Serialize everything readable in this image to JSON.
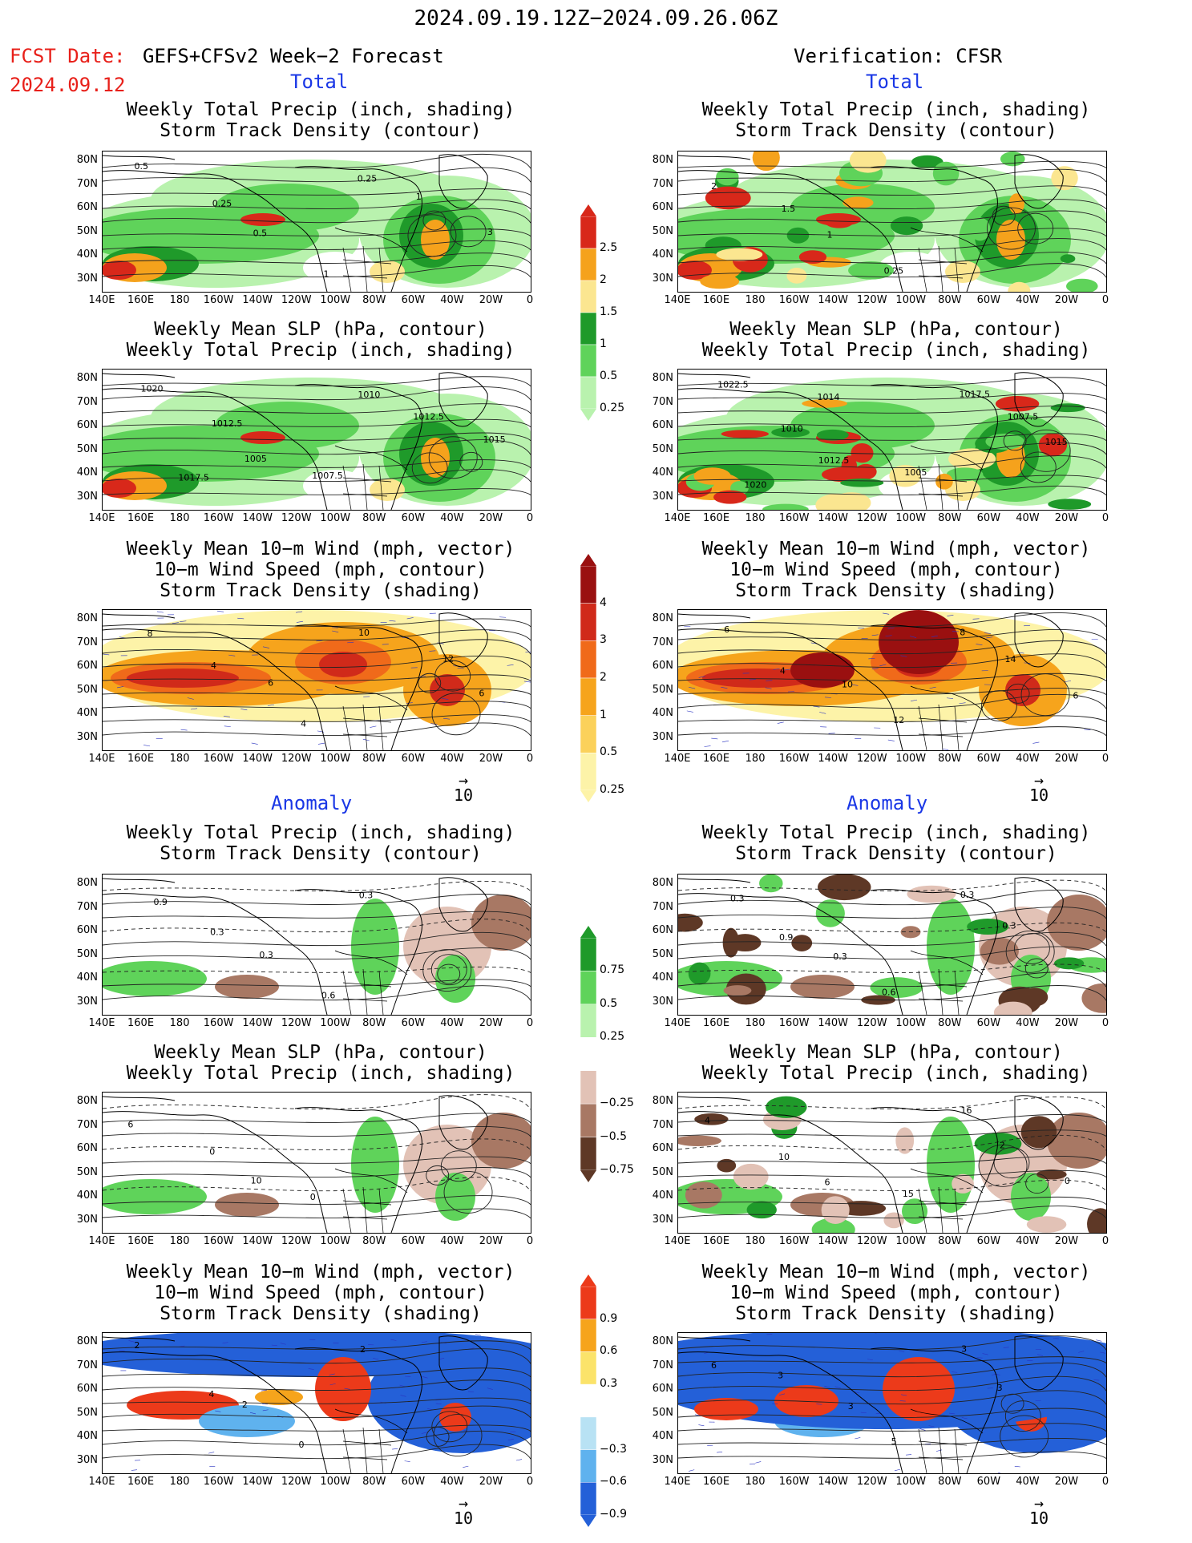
{
  "header": {
    "date_range": "2024.09.19.12Z−2024.09.26.06Z",
    "fcst_date_label": "FCST Date:",
    "fcst_date_value": "2024.09.12",
    "forecast_name": "GEFS+CFSv2 Week−2 Forecast",
    "verification": "Verification: CFSR"
  },
  "sections": {
    "total": "Total",
    "anomaly": "Anomaly"
  },
  "panel_titles": {
    "precip_storm": "Weekly Total Precip (inch, shading)\nStorm Track Density (contour)",
    "slp_precip": "Weekly Mean SLP (hPa, contour)\nWeekly Total Precip (inch, shading)",
    "wind": "Weekly Mean 10−m Wind (mph, vector)\n10−m Wind Speed (mph, contour)\nStorm Track Density (shading)"
  },
  "axes": {
    "lat_labels": [
      "80N",
      "70N",
      "60N",
      "50N",
      "40N",
      "30N"
    ],
    "lon_labels": [
      "140E",
      "160E",
      "180",
      "160W",
      "140W",
      "120W",
      "100W",
      "80W",
      "60W",
      "40W",
      "20W",
      "0"
    ]
  },
  "ref_vector": {
    "arrow": "→",
    "value": "10"
  },
  "colorbars": {
    "precip_total": {
      "labels": [
        "2.5",
        "2",
        "1.5",
        "1",
        "0.5",
        "0.25"
      ],
      "colors": [
        "#d8281a",
        "#f5a21c",
        "#fbe690",
        "#1f9a2a",
        "#5fd35a",
        "#b9f2ae"
      ]
    },
    "storm_total": {
      "labels": [
        "4",
        "3",
        "2",
        "1",
        "0.5",
        "0.25"
      ],
      "colors": [
        "#9a1010",
        "#d02a1a",
        "#f06a1a",
        "#f6a41c",
        "#fbd15a",
        "#fdf3a8"
      ]
    },
    "precip_anom": {
      "labels": [
        "0.75",
        "0.5",
        "0.25",
        "−0.25",
        "−0.5",
        "−0.75"
      ],
      "colors": [
        "#1f9a2a",
        "#5fd35a",
        "#b9f2ae",
        "#ffffff",
        "#e2c2b6",
        "#a87864",
        "#5e3826"
      ]
    },
    "storm_anom": {
      "labels": [
        "0.9",
        "0.6",
        "0.3",
        "−0.3",
        "−0.6",
        "−0.9"
      ],
      "colors": [
        "#ec3a1a",
        "#f6a41c",
        "#fbe36a",
        "#ffffff",
        "#b8e2f4",
        "#5fb2ee",
        "#2460d8"
      ]
    }
  },
  "map_labels": {
    "fc_precip_storm": [
      "0.5",
      "0.25",
      "0.5",
      "1",
      "0.25",
      "1",
      "3"
    ],
    "vf_precip_storm": [
      "2",
      "1.5",
      "1",
      "0.25"
    ],
    "fc_slp": [
      "1020",
      "1012.5",
      "1005",
      "1007.5",
      "1010",
      "1012.5",
      "1015",
      "1017.5"
    ],
    "vf_slp": [
      "1022.5",
      "1010",
      "1012.5",
      "1005",
      "1017.5",
      "1007.5",
      "1015",
      "1020",
      "1014"
    ],
    "fc_wind": [
      "8",
      "4",
      "6",
      "4",
      "10",
      "12",
      "6"
    ],
    "vf_wind": [
      "6",
      "4",
      "10",
      "12",
      "8",
      "14",
      "6"
    ],
    "fc_anom_precip": [
      "0.9",
      "0.3",
      "0.3",
      "0.6",
      "0.3"
    ],
    "vf_anom_precip": [
      "0.3",
      "0.9",
      "0.3",
      "0.6",
      "0.3",
      "0.3"
    ],
    "fc_anom_slp": [
      "6",
      "0",
      "10",
      "0"
    ],
    "vf_anom_slp": [
      "4",
      "10",
      "6",
      "15",
      "16",
      "2",
      "0"
    ],
    "fc_anom_wind": [
      "2",
      "4",
      "2",
      "0",
      "2"
    ],
    "vf_anom_wind": [
      "6",
      "3",
      "3",
      "5",
      "3",
      "3"
    ]
  }
}
